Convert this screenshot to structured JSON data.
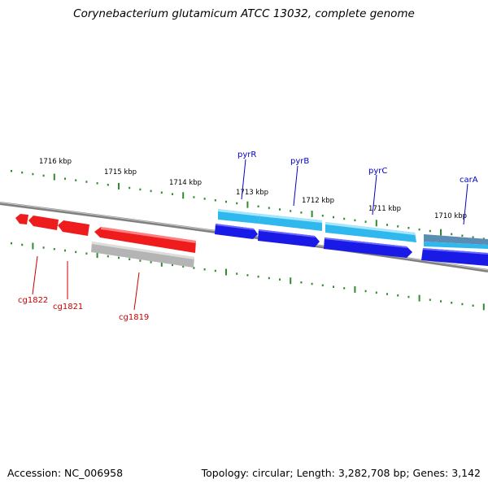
{
  "title": "Corynebacterium glutamicum ATCC 13032, complete genome",
  "footer": {
    "accession": "Accession: NC_006958",
    "summary": "Topology: circular; Length: 3,282,708 bp; Genes: 3,142"
  },
  "colors": {
    "backbone": "#808080",
    "tick": "#2e8b2e",
    "forward_gene": "#2fb8ee",
    "forward_gene_dark": "#2020e0",
    "reverse_gene": "#ee1c1c",
    "pseudo_gene": "#b4b4b4",
    "gene_label_blue": "#0000c8",
    "gene_label_red": "#cc0000"
  },
  "scale_labels": [
    "1716 kbp",
    "1715 kbp",
    "1714 kbp",
    "1713 kbp",
    "1712 kbp",
    "1711 kbp",
    "1710 kbp"
  ],
  "gene_labels": {
    "forward": [
      "pyrR",
      "pyrB",
      "pyrC",
      "carA"
    ],
    "reverse": [
      "cg1822",
      "cg1821",
      "cg1819"
    ]
  }
}
